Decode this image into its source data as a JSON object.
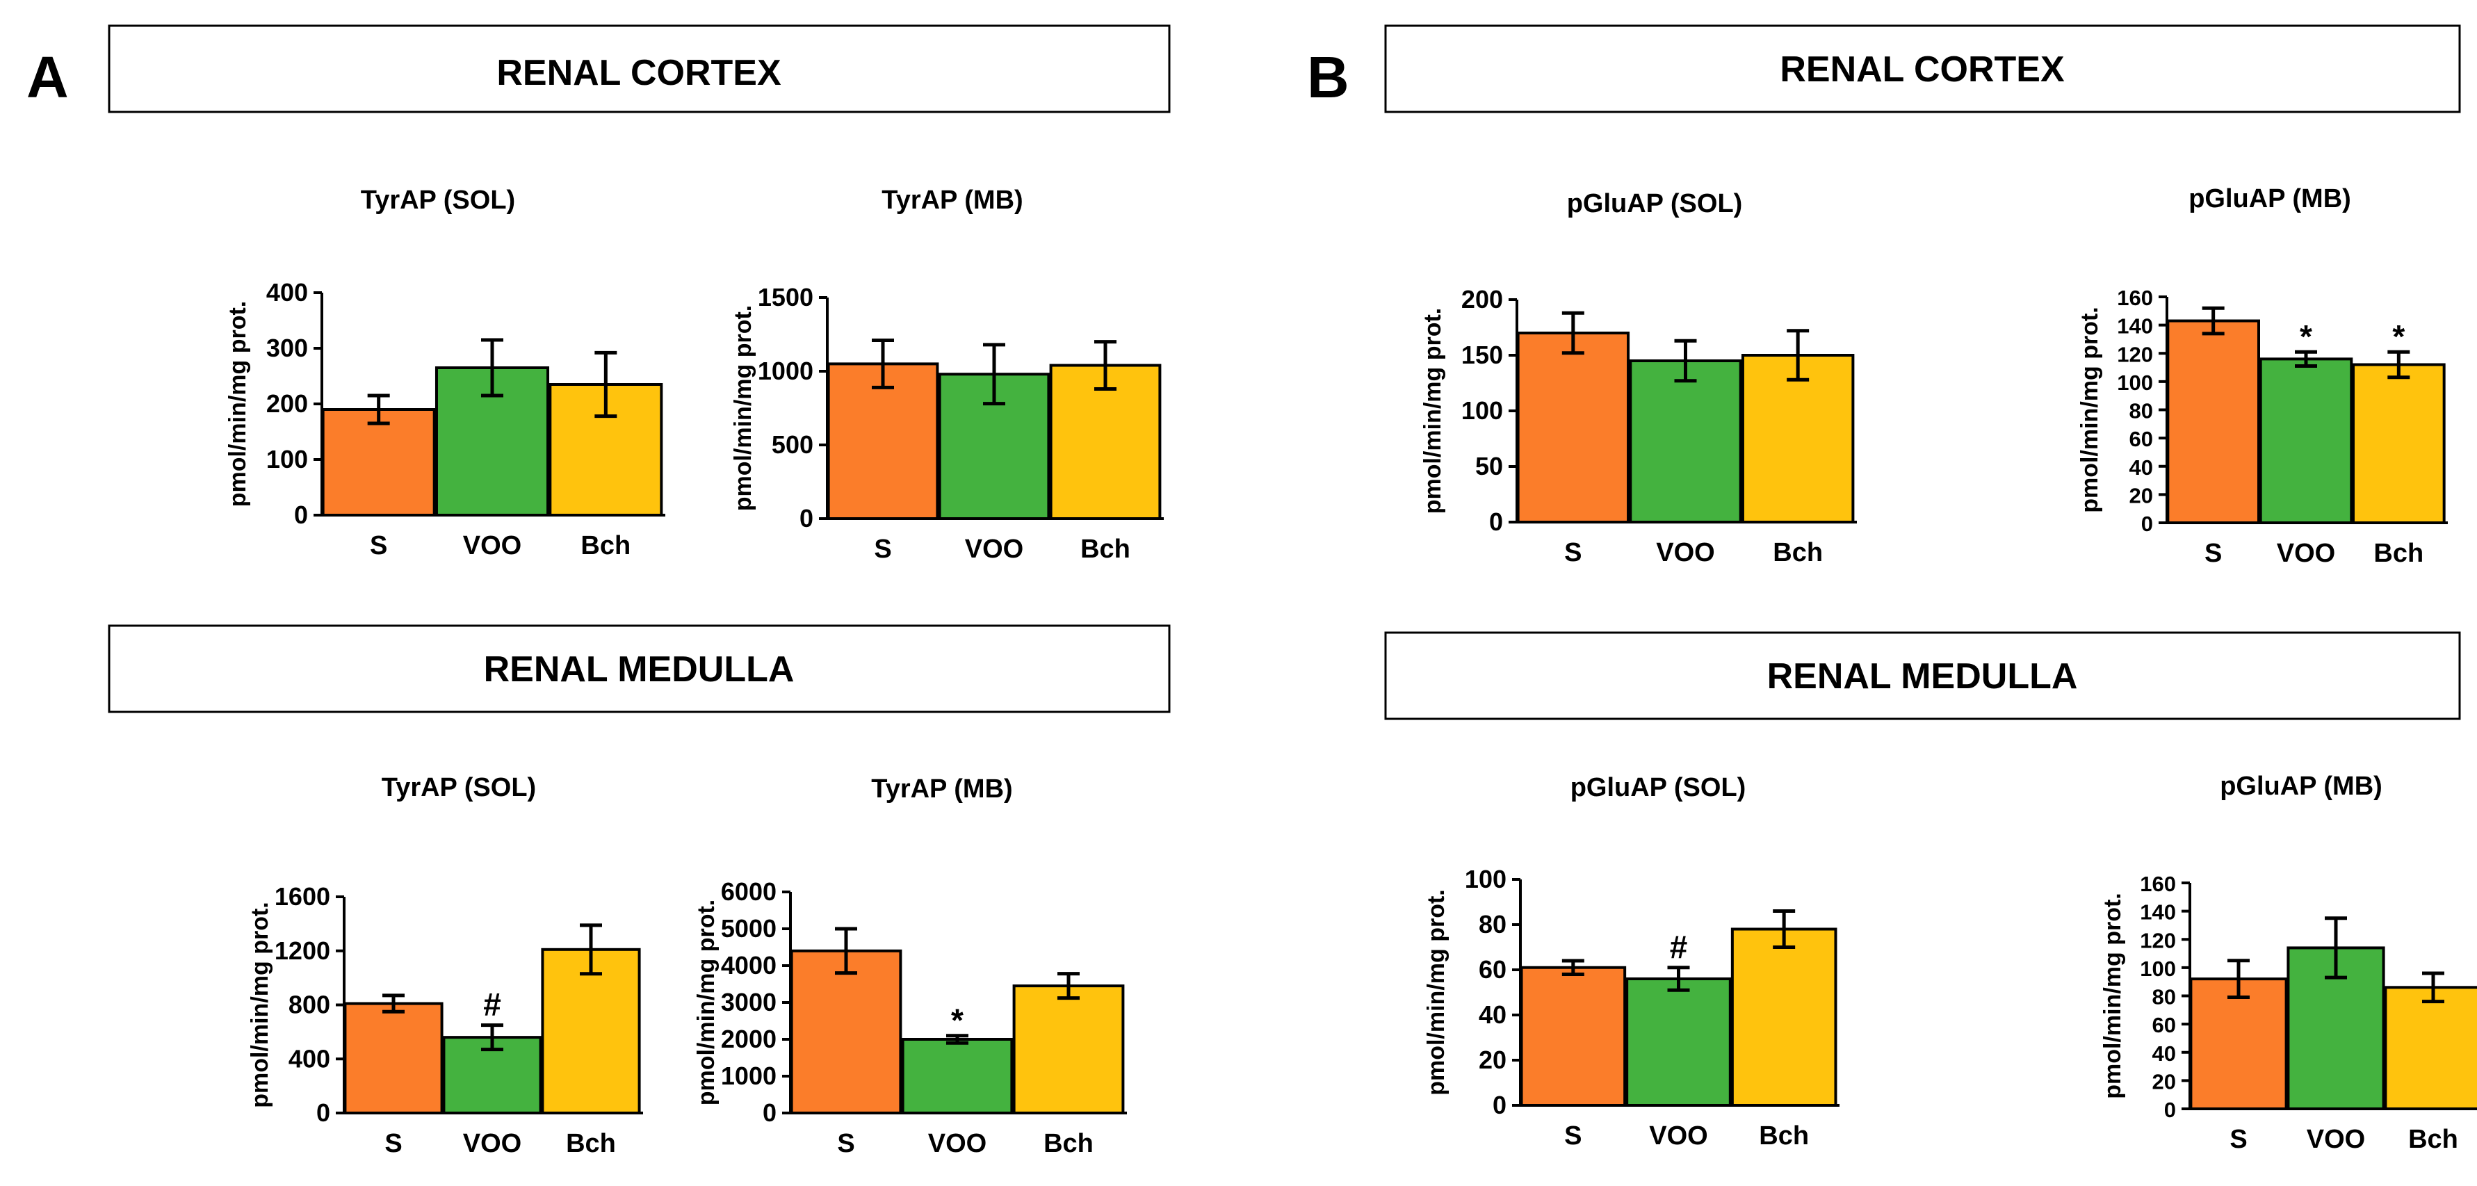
{
  "panels": [
    {
      "letter": "A",
      "sections": [
        {
          "title": "RENAL CORTEX"
        },
        {
          "title": "RENAL MEDULLA"
        }
      ]
    },
    {
      "letter": "B",
      "sections": [
        {
          "title": "RENAL CORTEX"
        },
        {
          "title": "RENAL MEDULLA"
        }
      ]
    }
  ],
  "colors": {
    "S": "#fb7d2a",
    "VOO": "#44b23f",
    "Bch": "#ffc30d"
  },
  "chart_data": [
    {
      "id": "A-cortex-sol",
      "type": "bar",
      "title": "TyrAP (SOL)",
      "ylabel": "pmol/min/mg prot.",
      "categories": [
        "S",
        "VOO",
        "Bch"
      ],
      "values": [
        190,
        265,
        235
      ],
      "errors": [
        25,
        50,
        57
      ],
      "ylim": [
        0,
        400
      ],
      "yticks": [
        0,
        100,
        200,
        300,
        400
      ],
      "annotations": [
        "",
        "",
        ""
      ]
    },
    {
      "id": "A-cortex-mb",
      "type": "bar",
      "title": "TyrAP (MB)",
      "ylabel": "pmol/min/mg prot.",
      "categories": [
        "S",
        "VOO",
        "Bch"
      ],
      "values": [
        1050,
        980,
        1040
      ],
      "errors": [
        160,
        200,
        160
      ],
      "ylim": [
        0,
        1500
      ],
      "yticks": [
        0,
        500,
        1000,
        1500
      ],
      "annotations": [
        "",
        "",
        ""
      ]
    },
    {
      "id": "A-medulla-sol",
      "type": "bar",
      "title": "TyrAP (SOL)",
      "ylabel": "pmol/min/mg prot.",
      "categories": [
        "S",
        "VOO",
        "Bch"
      ],
      "values": [
        810,
        560,
        1210
      ],
      "errors": [
        60,
        90,
        180
      ],
      "ylim": [
        0,
        1600
      ],
      "yticks": [
        0,
        400,
        800,
        1200,
        1600
      ],
      "annotations": [
        "",
        "#",
        ""
      ]
    },
    {
      "id": "A-medulla-mb",
      "type": "bar",
      "title": "TyrAP (MB)",
      "ylabel": "pmol/min/mg prot.",
      "categories": [
        "S",
        "VOO",
        "Bch"
      ],
      "values": [
        4400,
        2000,
        3450
      ],
      "errors": [
        600,
        100,
        330
      ],
      "ylim": [
        0,
        6000
      ],
      "yticks": [
        0,
        1000,
        2000,
        3000,
        4000,
        5000,
        6000
      ],
      "annotations": [
        "",
        "*",
        ""
      ]
    },
    {
      "id": "B-cortex-sol",
      "type": "bar",
      "title": "pGluAP (SOL)",
      "ylabel": "pmol/min/mg prot.",
      "categories": [
        "S",
        "VOO",
        "Bch"
      ],
      "values": [
        170,
        145,
        150
      ],
      "errors": [
        18,
        18,
        22
      ],
      "ylim": [
        0,
        200
      ],
      "yticks": [
        0,
        50,
        100,
        150,
        200
      ],
      "annotations": [
        "",
        "",
        ""
      ]
    },
    {
      "id": "B-cortex-mb",
      "type": "bar",
      "title": "pGluAP (MB)",
      "ylabel": "pmol/min/mg prot.",
      "categories": [
        "S",
        "VOO",
        "Bch"
      ],
      "values": [
        143,
        116,
        112
      ],
      "errors": [
        9,
        5,
        9
      ],
      "ylim": [
        0,
        160
      ],
      "yticks": [
        0,
        20,
        40,
        60,
        80,
        100,
        120,
        140,
        160
      ],
      "annotations": [
        "",
        "*",
        "*"
      ]
    },
    {
      "id": "B-medulla-sol",
      "type": "bar",
      "title": "pGluAP (SOL)",
      "ylabel": "pmol/min/mg prot.",
      "categories": [
        "S",
        "VOO",
        "Bch"
      ],
      "values": [
        61,
        56,
        78
      ],
      "errors": [
        3,
        5,
        8
      ],
      "ylim": [
        0,
        100
      ],
      "yticks": [
        0,
        20,
        40,
        60,
        80,
        100
      ],
      "annotations": [
        "",
        "#",
        ""
      ]
    },
    {
      "id": "B-medulla-mb",
      "type": "bar",
      "title": "pGluAP (MB)",
      "ylabel": "pmol/min/mg prot.",
      "categories": [
        "S",
        "VOO",
        "Bch"
      ],
      "values": [
        92,
        114,
        86
      ],
      "errors": [
        13,
        21,
        10
      ],
      "ylim": [
        0,
        160
      ],
      "yticks": [
        0,
        20,
        40,
        60,
        80,
        100,
        120,
        140,
        160
      ],
      "annotations": [
        "",
        "",
        ""
      ]
    }
  ]
}
